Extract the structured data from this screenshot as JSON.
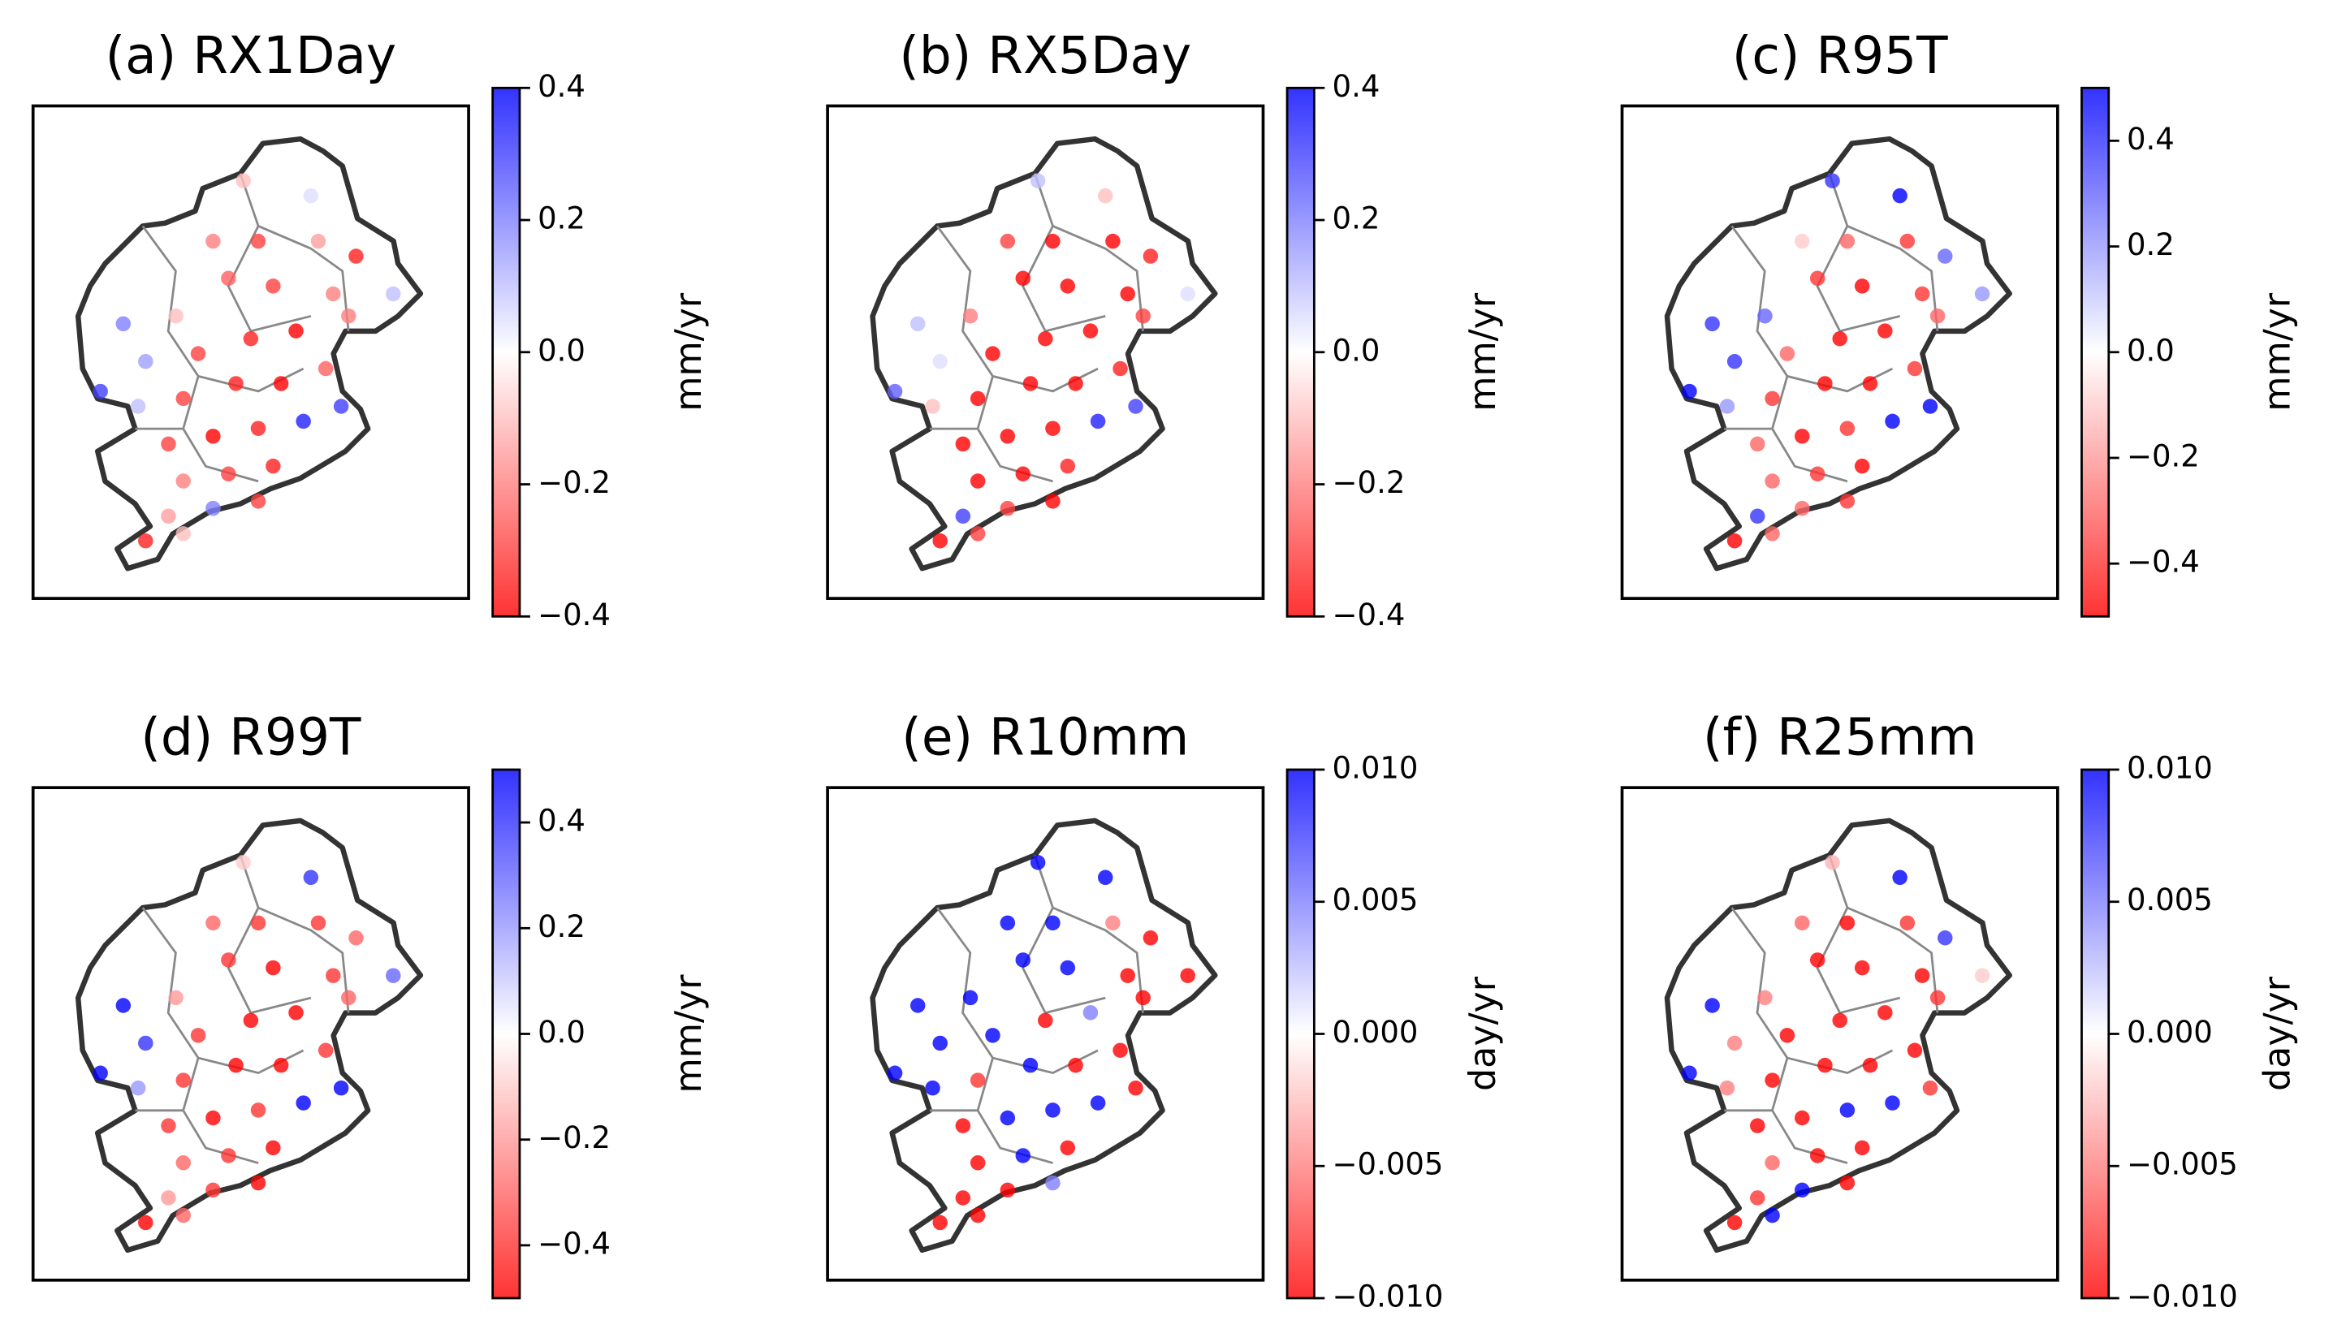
{
  "stations": {
    "lon": [
      116.51,
      117.78,
      115.94,
      116.79,
      117.92,
      118.63,
      119.33,
      114.25,
      115.24,
      116.23,
      117.07,
      118.2,
      113.82,
      114.67,
      115.66,
      116.65,
      117.5,
      118.49,
      114.53,
      115.38,
      116.37,
      117.22,
      118.06,
      115.1,
      115.94,
      116.79,
      117.64,
      118.35,
      115.38,
      116.23,
      117.07,
      115.1,
      115.94,
      116.79,
      114.67,
      115.38
    ],
    "lat": [
      42.01,
      41.78,
      41.08,
      41.08,
      41.08,
      40.85,
      40.27,
      39.81,
      39.93,
      40.51,
      40.39,
      40.27,
      38.77,
      39.23,
      39.35,
      39.58,
      39.7,
      39.93,
      38.54,
      38.66,
      38.89,
      38.89,
      39.12,
      37.96,
      38.08,
      38.2,
      38.31,
      38.54,
      37.39,
      37.5,
      37.62,
      36.85,
      36.97,
      37.08,
      36.47,
      36.58
    ]
  },
  "chart_data": [
    {
      "type": "map",
      "title": "(a) RX1Day",
      "colorbar_label": "mm/yr",
      "clim": [
        -0.4,
        0.4
      ],
      "colors": [
        "#ff0000",
        "#ffffff",
        "#0000ff"
      ],
      "cticks": [
        {
          "value": -0.4,
          "label": "−0.4"
        },
        {
          "value": -0.2,
          "label": "−0.2"
        },
        {
          "value": 0,
          "label": "0.0"
        },
        0.2,
        0.4
      ],
      "values": [
        -0.1,
        0.05,
        -0.2,
        -0.3,
        -0.15,
        -0.35,
        0.1,
        0.2,
        -0.1,
        -0.25,
        -0.3,
        -0.2,
        0.3,
        0.15,
        -0.3,
        -0.35,
        -0.4,
        -0.2,
        0.1,
        -0.3,
        -0.35,
        -0.4,
        -0.25,
        -0.3,
        -0.4,
        -0.35,
        0.35,
        0.3,
        -0.2,
        -0.3,
        -0.35,
        -0.15,
        0.2,
        -0.3,
        -0.35,
        -0.1
      ]
    },
    {
      "type": "map",
      "title": "(b) RX5Day",
      "colorbar_label": "mm/yr",
      "clim": [
        -0.4,
        0.4
      ],
      "colors": [
        "#ff0000",
        "#ffffff",
        "#0000ff"
      ],
      "cticks": [
        {
          "value": -0.4,
          "label": "−0.4"
        },
        {
          "value": -0.2,
          "label": "−0.2"
        },
        {
          "value": 0,
          "label": "0.0"
        },
        0.2,
        0.4
      ],
      "values": [
        0.1,
        -0.1,
        -0.3,
        -0.4,
        -0.4,
        -0.35,
        0.05,
        0.1,
        -0.2,
        -0.4,
        -0.4,
        -0.4,
        0.25,
        0.05,
        -0.4,
        -0.4,
        -0.4,
        -0.3,
        -0.1,
        -0.4,
        -0.4,
        -0.4,
        -0.35,
        -0.4,
        -0.4,
        -0.4,
        0.35,
        0.3,
        -0.4,
        -0.4,
        -0.35,
        0.3,
        -0.3,
        -0.4,
        -0.4,
        -0.3
      ]
    },
    {
      "type": "map",
      "title": "(c) R95T",
      "colorbar_label": "mm/yr",
      "clim": [
        -0.5,
        0.5
      ],
      "colors": [
        "#ff0000",
        "#ffffff",
        "#0000ff"
      ],
      "cticks": [
        {
          "value": -0.4,
          "label": "−0.4"
        },
        {
          "value": -0.2,
          "label": "−0.2"
        },
        {
          "value": 0,
          "label": "0.0"
        },
        0.2,
        0.4
      ],
      "values": [
        0.4,
        0.5,
        -0.1,
        -0.3,
        -0.4,
        0.3,
        0.2,
        0.4,
        0.3,
        -0.4,
        -0.5,
        -0.4,
        0.5,
        0.4,
        -0.3,
        -0.5,
        -0.5,
        -0.3,
        0.2,
        -0.4,
        -0.5,
        -0.5,
        -0.4,
        -0.3,
        -0.5,
        -0.4,
        0.5,
        0.5,
        -0.3,
        -0.4,
        -0.5,
        0.4,
        -0.3,
        -0.4,
        -0.5,
        -0.3
      ]
    },
    {
      "type": "map",
      "title": "(d) R99T",
      "colorbar_label": "mm/yr",
      "clim": [
        -0.5,
        0.5
      ],
      "colors": [
        "#ff0000",
        "#ffffff",
        "#0000ff"
      ],
      "cticks": [
        {
          "value": -0.4,
          "label": "−0.4"
        },
        {
          "value": -0.2,
          "label": "−0.2"
        },
        {
          "value": 0,
          "label": "0.0"
        },
        0.2,
        0.4
      ],
      "values": [
        -0.1,
        0.4,
        -0.3,
        -0.4,
        -0.4,
        -0.3,
        0.3,
        0.5,
        -0.2,
        -0.4,
        -0.5,
        -0.4,
        0.5,
        0.4,
        -0.4,
        -0.5,
        -0.5,
        -0.3,
        0.2,
        -0.4,
        -0.5,
        -0.5,
        -0.4,
        -0.4,
        -0.5,
        -0.4,
        0.5,
        0.5,
        -0.3,
        -0.4,
        -0.5,
        -0.2,
        -0.4,
        -0.5,
        -0.5,
        -0.3
      ]
    },
    {
      "type": "map",
      "title": "(e) R10mm",
      "colorbar_label": "day/yr",
      "clim": [
        -0.01,
        0.01
      ],
      "colors": [
        "#ff0000",
        "#ffffff",
        "#0000ff"
      ],
      "cticks": [
        {
          "value": -0.01,
          "label": "−0.010"
        },
        {
          "value": -0.005,
          "label": "−0.005"
        },
        {
          "value": 0,
          "label": "0.000"
        },
        0.005,
        {
          "value": 0.01,
          "label": "0.010"
        }
      ],
      "values": [
        0.01,
        0.01,
        0.01,
        0.01,
        -0.005,
        -0.01,
        -0.01,
        0.01,
        0.01,
        0.01,
        0.01,
        -0.01,
        0.01,
        0.01,
        0.01,
        -0.01,
        0.005,
        -0.01,
        0.01,
        -0.008,
        0.01,
        -0.01,
        -0.01,
        -0.01,
        0.01,
        0.01,
        0.01,
        -0.01,
        -0.01,
        0.01,
        -0.01,
        -0.01,
        -0.01,
        0.005,
        -0.01,
        -0.01
      ]
    },
    {
      "type": "map",
      "title": "(f) R25mm",
      "colorbar_label": "day/yr",
      "clim": [
        -0.01,
        0.01
      ],
      "colors": [
        "#ff0000",
        "#ffffff",
        "#0000ff"
      ],
      "cticks": [
        {
          "value": -0.01,
          "label": "−0.010"
        },
        {
          "value": -0.005,
          "label": "−0.005"
        },
        {
          "value": 0,
          "label": "0.000"
        },
        0.005,
        {
          "value": 0.01,
          "label": "0.010"
        }
      ],
      "values": [
        -0.003,
        0.01,
        -0.006,
        -0.01,
        -0.008,
        0.008,
        -0.002,
        0.01,
        -0.005,
        -0.01,
        -0.01,
        -0.01,
        0.01,
        -0.005,
        -0.01,
        -0.01,
        -0.01,
        -0.008,
        -0.005,
        -0.01,
        -0.01,
        -0.01,
        -0.01,
        -0.01,
        -0.01,
        0.01,
        0.01,
        -0.008,
        -0.006,
        -0.01,
        -0.01,
        -0.008,
        0.01,
        -0.01,
        -0.01,
        0.01
      ]
    }
  ]
}
